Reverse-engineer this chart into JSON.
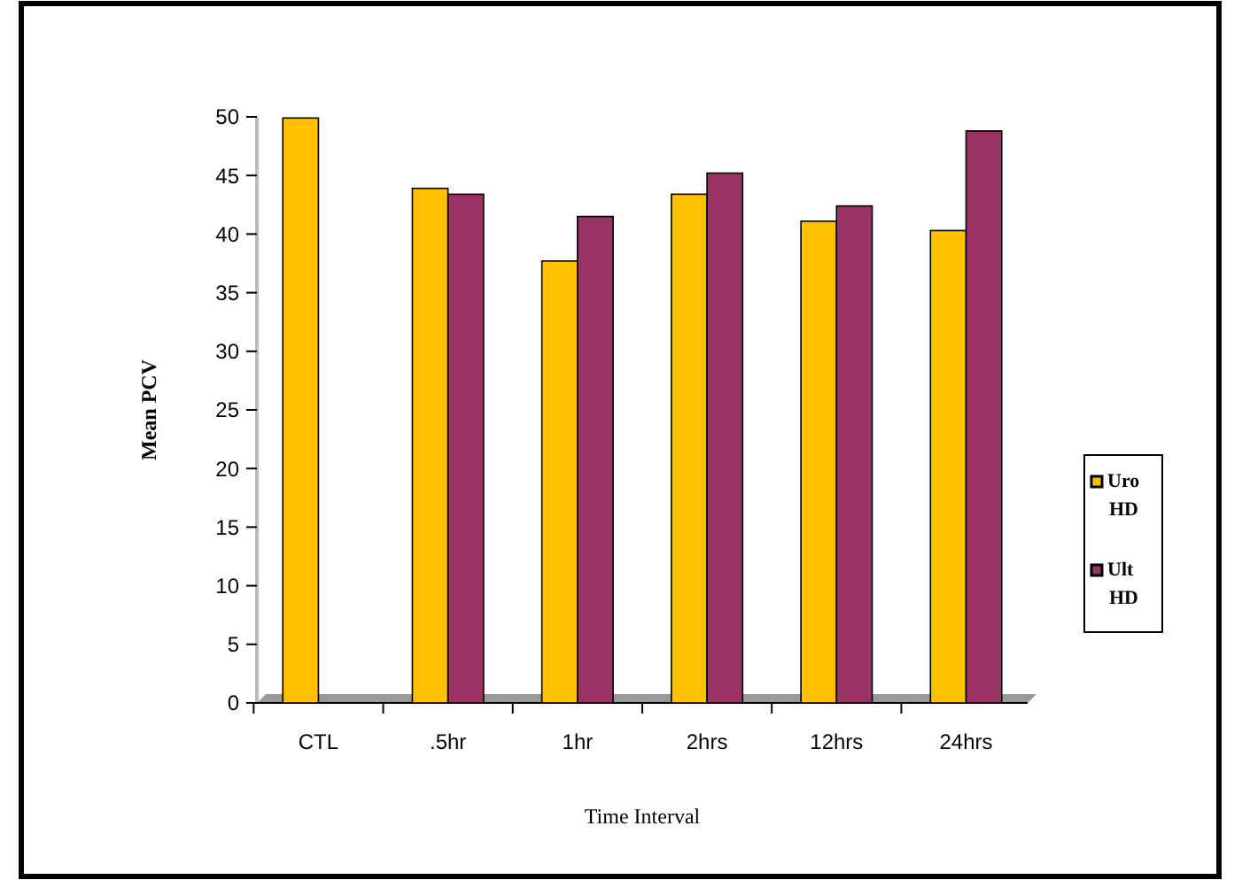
{
  "chart_data": {
    "type": "bar",
    "xlabel": "Time Interval",
    "ylabel": "Mean PCV",
    "categories": [
      "CTL",
      ".5hr",
      "1hr",
      "2hrs",
      "12hrs",
      "24hrs"
    ],
    "series": [
      {
        "name": "Uro HD",
        "color": "#ffc000",
        "values": [
          49.9,
          43.9,
          37.7,
          43.4,
          41.1,
          40.3
        ]
      },
      {
        "name": "Ult HD",
        "color": "#993366",
        "values": [
          null,
          43.4,
          41.5,
          45.2,
          42.4,
          48.8
        ]
      }
    ],
    "ylim": [
      0,
      50
    ],
    "yticks": [
      0,
      5,
      10,
      15,
      20,
      25,
      30,
      35,
      40,
      45,
      50
    ],
    "grid": false,
    "legend": "right"
  }
}
